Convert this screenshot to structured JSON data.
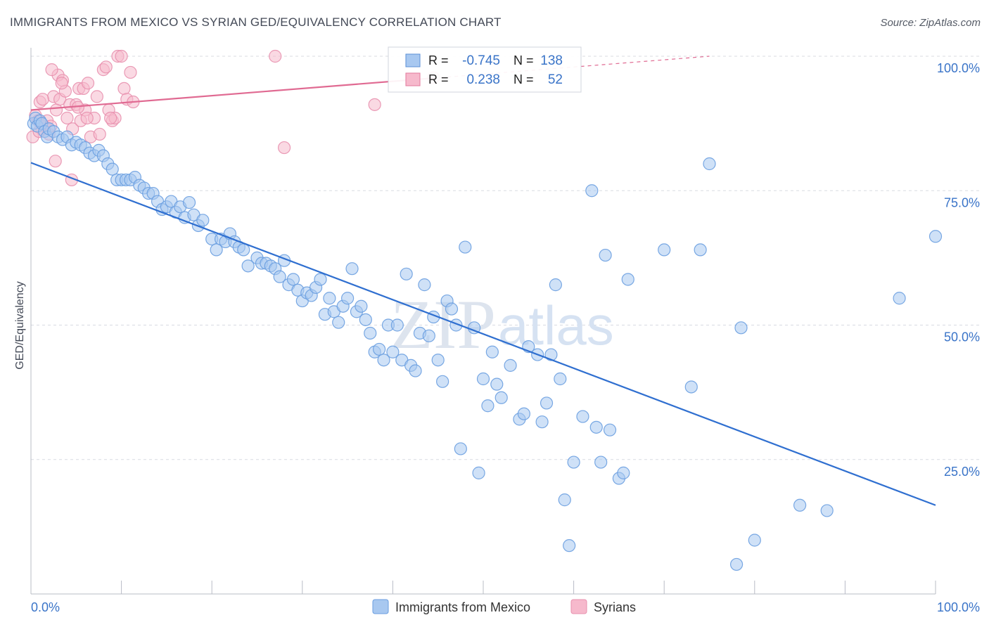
{
  "header": {
    "title": "IMMIGRANTS FROM MEXICO VS SYRIAN GED/EQUIVALENCY CORRELATION CHART",
    "source": "Source: ZipAtlas.com"
  },
  "watermark": {
    "zip": "ZIP",
    "atlas": "atlas"
  },
  "legend_box": {
    "rows": [
      {
        "r_label": "R =",
        "r_value": "-0.745",
        "n_label": "N =",
        "n_value": "138",
        "color": "#a8c8f0",
        "border": "#5b8fd6"
      },
      {
        "r_label": "R =",
        "r_value": "0.238",
        "n_label": "N =",
        "n_value": "52",
        "color": "#f6b9cc",
        "border": "#e3799d"
      }
    ]
  },
  "colors": {
    "blue_fill": "#a8c8f0",
    "blue_stroke": "#6a9ee0",
    "blue_line": "#2f6fd0",
    "pink_fill": "#f6b9cc",
    "pink_stroke": "#e890ae",
    "pink_line": "#e06a92",
    "value_text": "#3a74c8",
    "grid": "#d8dbe2"
  },
  "chart_data": {
    "type": "scatter",
    "title": "IMMIGRANTS FROM MEXICO VS SYRIAN GED/EQUIVALENCY CORRELATION CHART",
    "xlabel": "",
    "ylabel": "GED/Equivalency",
    "xlim": [
      0,
      100
    ],
    "ylim": [
      0,
      100
    ],
    "x_ticks": [
      "0.0%",
      "100.0%"
    ],
    "y_ticks": [
      {
        "value": 25,
        "label": "25.0%"
      },
      {
        "value": 50,
        "label": "50.0%"
      },
      {
        "value": 75,
        "label": "75.0%"
      },
      {
        "value": 100,
        "label": "100.0%"
      }
    ],
    "grid": true,
    "legend_position": "bottom-center",
    "series": [
      {
        "name": "Immigrants from Mexico",
        "r": -0.745,
        "n": 138,
        "trend": {
          "x0": 0,
          "y0": 80.2,
          "x1": 100,
          "y1": 16.5
        },
        "points": [
          [
            0.3,
            87.5
          ],
          [
            0.5,
            88.5
          ],
          [
            0.7,
            87
          ],
          [
            1.0,
            88
          ],
          [
            1.2,
            87.5
          ],
          [
            1.5,
            86
          ],
          [
            1.8,
            85
          ],
          [
            2.0,
            86.5
          ],
          [
            2.5,
            86
          ],
          [
            3.0,
            85
          ],
          [
            3.5,
            84.5
          ],
          [
            4.0,
            85
          ],
          [
            4.5,
            83.5
          ],
          [
            5.0,
            84
          ],
          [
            5.5,
            83.5
          ],
          [
            6.0,
            83
          ],
          [
            6.5,
            82
          ],
          [
            7.0,
            81.5
          ],
          [
            7.5,
            82.5
          ],
          [
            8.0,
            81.5
          ],
          [
            8.5,
            80
          ],
          [
            9.0,
            79
          ],
          [
            9.5,
            77
          ],
          [
            10.0,
            77
          ],
          [
            10.5,
            77
          ],
          [
            11.0,
            77
          ],
          [
            11.5,
            77.5
          ],
          [
            12.0,
            76
          ],
          [
            12.5,
            75.5
          ],
          [
            13.0,
            74.5
          ],
          [
            13.5,
            74.5
          ],
          [
            14.0,
            73
          ],
          [
            14.5,
            71.5
          ],
          [
            15.0,
            72
          ],
          [
            15.5,
            73
          ],
          [
            16.0,
            71
          ],
          [
            16.5,
            72
          ],
          [
            17.0,
            70
          ],
          [
            17.5,
            72.8
          ],
          [
            18.0,
            70.5
          ],
          [
            18.5,
            68.5
          ],
          [
            19.0,
            69.5
          ],
          [
            20.0,
            66
          ],
          [
            20.5,
            64
          ],
          [
            21.0,
            66
          ],
          [
            21.5,
            65.5
          ],
          [
            22.0,
            67
          ],
          [
            22.5,
            65.5
          ],
          [
            23.0,
            64.5
          ],
          [
            23.5,
            64
          ],
          [
            24.0,
            61
          ],
          [
            25.0,
            62.5
          ],
          [
            25.5,
            61.5
          ],
          [
            26.0,
            61.5
          ],
          [
            26.5,
            61
          ],
          [
            27.0,
            60.5
          ],
          [
            27.5,
            59
          ],
          [
            28.0,
            62
          ],
          [
            28.5,
            57.5
          ],
          [
            29.0,
            58.5
          ],
          [
            29.5,
            56.5
          ],
          [
            30.0,
            54.5
          ],
          [
            30.5,
            56
          ],
          [
            31.0,
            55.5
          ],
          [
            31.5,
            57
          ],
          [
            32.0,
            58.5
          ],
          [
            32.5,
            52
          ],
          [
            33.0,
            55
          ],
          [
            33.5,
            52.5
          ],
          [
            34.0,
            50.5
          ],
          [
            34.5,
            53.5
          ],
          [
            35.0,
            55
          ],
          [
            35.5,
            60.5
          ],
          [
            36.0,
            52.5
          ],
          [
            36.5,
            53.5
          ],
          [
            37.0,
            51
          ],
          [
            37.5,
            48.5
          ],
          [
            38.0,
            45
          ],
          [
            38.5,
            45.5
          ],
          [
            39.0,
            43.5
          ],
          [
            39.5,
            50
          ],
          [
            40.0,
            45
          ],
          [
            40.5,
            50
          ],
          [
            41.0,
            43.5
          ],
          [
            41.5,
            59.5
          ],
          [
            42.0,
            42.5
          ],
          [
            42.5,
            41.5
          ],
          [
            43.0,
            48.5
          ],
          [
            43.5,
            57.5
          ],
          [
            44.0,
            48
          ],
          [
            44.5,
            51.5
          ],
          [
            45.0,
            43.5
          ],
          [
            45.5,
            39.5
          ],
          [
            46.0,
            54.5
          ],
          [
            46.5,
            53
          ],
          [
            47.0,
            50
          ],
          [
            47.5,
            27
          ],
          [
            48.0,
            64.5
          ],
          [
            49.0,
            49.5
          ],
          [
            49.5,
            22.5
          ],
          [
            50.0,
            40
          ],
          [
            50.5,
            35
          ],
          [
            51.0,
            45
          ],
          [
            51.5,
            39
          ],
          [
            52.0,
            36.5
          ],
          [
            53.0,
            42.5
          ],
          [
            54.0,
            32.5
          ],
          [
            54.5,
            33.5
          ],
          [
            55.0,
            46
          ],
          [
            56.0,
            44.5
          ],
          [
            56.5,
            32
          ],
          [
            57.0,
            35.5
          ],
          [
            57.5,
            44.5
          ],
          [
            58.0,
            57.5
          ],
          [
            58.5,
            40
          ],
          [
            59.0,
            17.5
          ],
          [
            59.5,
            9
          ],
          [
            60.0,
            24.5
          ],
          [
            61.0,
            33
          ],
          [
            62.0,
            75
          ],
          [
            62.5,
            31
          ],
          [
            63.0,
            24.5
          ],
          [
            63.5,
            63
          ],
          [
            64.0,
            30.5
          ],
          [
            65.0,
            21.5
          ],
          [
            65.5,
            22.5
          ],
          [
            66.0,
            58.5
          ],
          [
            70.0,
            64
          ],
          [
            73.0,
            38.5
          ],
          [
            75.0,
            80
          ],
          [
            78.0,
            5.5
          ],
          [
            78.5,
            49.5
          ],
          [
            80.0,
            10
          ],
          [
            85.0,
            16.5
          ],
          [
            88.0,
            15.5
          ],
          [
            96.0,
            55
          ],
          [
            100.0,
            66.5
          ],
          [
            74.0,
            64
          ]
        ]
      },
      {
        "name": "Syrians",
        "r": 0.238,
        "n": 52,
        "trend": {
          "x0": 0,
          "y0": 90.0,
          "x1": 75,
          "y1": 100
        },
        "points": [
          [
            0.2,
            85
          ],
          [
            0.5,
            89
          ],
          [
            0.8,
            88
          ],
          [
            1.2,
            86.5
          ],
          [
            1.5,
            87
          ],
          [
            1.8,
            88
          ],
          [
            2.0,
            85.5
          ],
          [
            2.2,
            87
          ],
          [
            2.5,
            92.5
          ],
          [
            2.8,
            90
          ],
          [
            3.0,
            96.5
          ],
          [
            3.2,
            92
          ],
          [
            3.5,
            95.5
          ],
          [
            3.8,
            93.5
          ],
          [
            4.0,
            88.5
          ],
          [
            4.3,
            91
          ],
          [
            4.6,
            86.5
          ],
          [
            5.0,
            91
          ],
          [
            5.3,
            94
          ],
          [
            5.5,
            88
          ],
          [
            5.8,
            94
          ],
          [
            6.0,
            90
          ],
          [
            6.3,
            95
          ],
          [
            6.6,
            85
          ],
          [
            7.0,
            88.5
          ],
          [
            7.3,
            92.5
          ],
          [
            7.6,
            85.5
          ],
          [
            8.0,
            97.5
          ],
          [
            8.3,
            98
          ],
          [
            8.6,
            90
          ],
          [
            9.0,
            88
          ],
          [
            9.3,
            88.5
          ],
          [
            9.6,
            100
          ],
          [
            10.0,
            100
          ],
          [
            10.3,
            94
          ],
          [
            10.6,
            92
          ],
          [
            11.0,
            97
          ],
          [
            11.3,
            91.5
          ],
          [
            1.0,
            91.5
          ],
          [
            1.3,
            92
          ],
          [
            2.3,
            97.5
          ],
          [
            2.7,
            80.5
          ],
          [
            3.4,
            95
          ],
          [
            4.5,
            77
          ],
          [
            5.2,
            90.5
          ],
          [
            6.2,
            88.5
          ],
          [
            8.8,
            88.5
          ],
          [
            27.0,
            100
          ],
          [
            28.0,
            83
          ],
          [
            38.0,
            91
          ],
          [
            44.5,
            96
          ],
          [
            0.9,
            86
          ]
        ]
      }
    ]
  }
}
